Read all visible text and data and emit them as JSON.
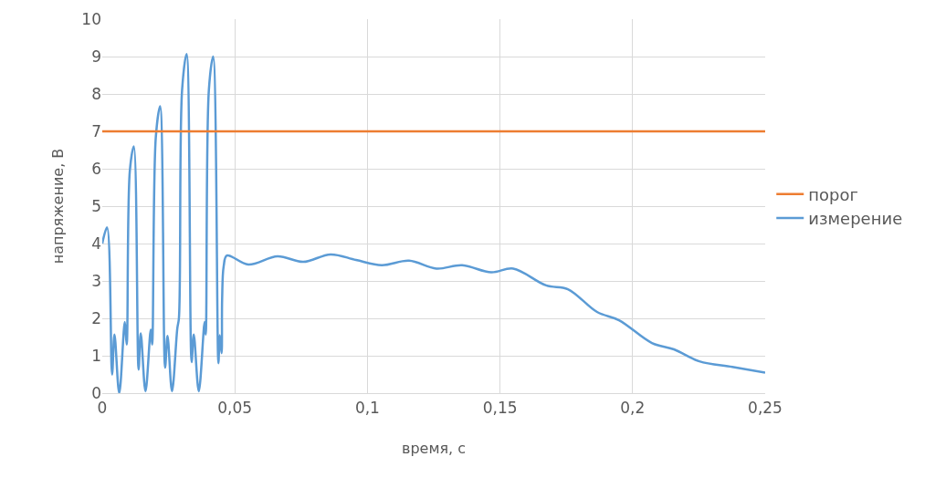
{
  "chart_data": {
    "type": "line",
    "xlabel": "время, с",
    "ylabel": "напряжение, В",
    "series": [
      {
        "name": "измерение",
        "color": "#5b9bd5",
        "x": [
          0,
          0.0018,
          0.0037,
          0.0046,
          0.0064,
          0.0085,
          0.0092,
          0.0104,
          0.0119,
          0.0137,
          0.0145,
          0.0163,
          0.0183,
          0.0188,
          0.0202,
          0.0218,
          0.0237,
          0.0246,
          0.0263,
          0.0283,
          0.0289,
          0.0301,
          0.0318,
          0.0337,
          0.0345,
          0.0364,
          0.0386,
          0.039,
          0.0402,
          0.0418,
          0.0438,
          0.0443,
          0.045,
          0.0452,
          0.0458,
          0.047,
          0.0551,
          0.0661,
          0.0758,
          0.0861,
          0.0957,
          0.1054,
          0.1157,
          0.126,
          0.1357,
          0.1467,
          0.155,
          0.1674,
          0.1756,
          0.1866,
          0.1949,
          0.2073,
          0.2156,
          0.2252,
          0.2376,
          0.25
        ],
        "values": [
          4.0,
          4.43,
          0.5,
          1.57,
          0.0,
          1.9,
          1.3,
          5.95,
          6.6,
          0.63,
          1.6,
          0.05,
          1.7,
          1.3,
          6.85,
          7.67,
          0.68,
          1.53,
          0.05,
          1.73,
          2.0,
          8.1,
          9.07,
          0.83,
          1.57,
          0.05,
          1.9,
          1.57,
          8.1,
          9.0,
          0.8,
          1.55,
          1.07,
          2.5,
          3.4,
          3.68,
          3.44,
          3.66,
          3.51,
          3.71,
          3.56,
          3.42,
          3.54,
          3.33,
          3.42,
          3.23,
          3.33,
          2.88,
          2.78,
          2.17,
          1.95,
          1.34,
          1.17,
          0.85,
          0.7,
          0.55
        ]
      },
      {
        "name": "порог",
        "color": "#ed7d31",
        "x": [
          0,
          0.25
        ],
        "values": [
          7,
          7
        ]
      }
    ],
    "xlim": [
      0,
      0.25
    ],
    "ylim": [
      0,
      10
    ],
    "xticks": [
      0,
      {
        "value": 0.05,
        "label": "0,05"
      },
      {
        "value": 0.1,
        "label": "0,1"
      },
      {
        "value": 0.15,
        "label": "0,15"
      },
      {
        "value": 0.2,
        "label": "0,2"
      },
      {
        "value": 0.25,
        "label": "0,25"
      }
    ],
    "yticks": [
      0,
      1,
      2,
      3,
      4,
      5,
      6,
      7,
      8,
      9,
      10
    ],
    "grid": true,
    "legend": "right",
    "marker": "none",
    "line_style": "solid"
  }
}
